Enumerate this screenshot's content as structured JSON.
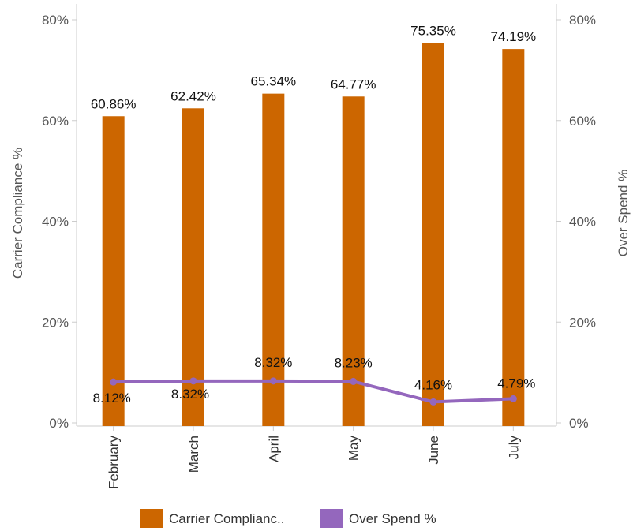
{
  "chart_data": {
    "type": "bar",
    "categories": [
      "February",
      "March",
      "April",
      "May",
      "June",
      "July"
    ],
    "series": [
      {
        "name": "Carrier Complianc..",
        "type": "bar",
        "axis": "left",
        "color": "#cc6600",
        "values": [
          60.86,
          62.42,
          65.34,
          64.77,
          75.35,
          74.19
        ],
        "labels": [
          "60.86%",
          "62.42%",
          "65.34%",
          "64.77%",
          "75.35%",
          "74.19%"
        ]
      },
      {
        "name": "Over Spend %",
        "type": "line",
        "axis": "right",
        "color": "#9467bd",
        "values": [
          8.12,
          8.32,
          8.32,
          8.23,
          4.16,
          4.79
        ],
        "labels": [
          "8.12%",
          "8.32%",
          "8.32%",
          "8.23%",
          "4.16%",
          "4.79%"
        ]
      }
    ],
    "ylabel": "Carrier Compliance %",
    "y2label": "Over Spend %",
    "ylim": [
      0,
      80
    ],
    "y2lim": [
      0,
      80
    ],
    "yticks": [
      "0%",
      "20%",
      "40%",
      "60%",
      "80%"
    ],
    "y2ticks": [
      "0%",
      "20%",
      "40%",
      "60%",
      "80%"
    ],
    "grid": false,
    "legend_position": "bottom"
  }
}
